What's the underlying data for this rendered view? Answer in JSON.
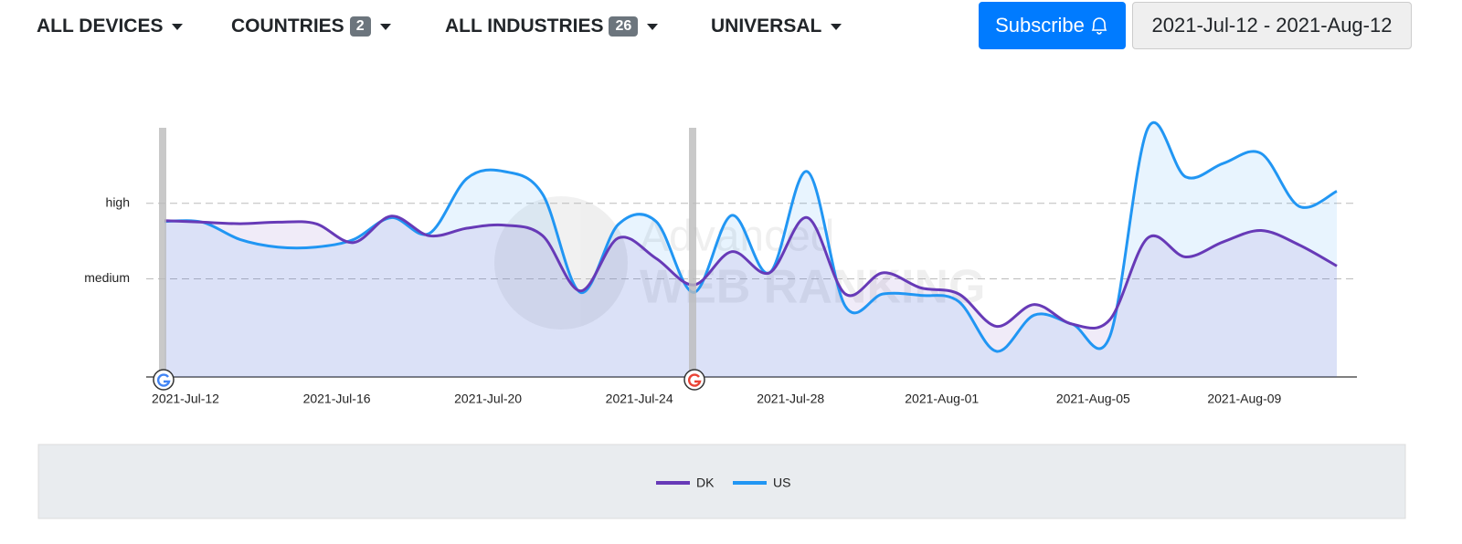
{
  "toolbar": {
    "devices": "ALL DEVICES",
    "countries": "COUNTRIES",
    "countries_badge": 2,
    "industries": "ALL INDUSTRIES",
    "industries_badge": 26,
    "search_type": "UNIVERSAL",
    "subscribe": "Subscribe",
    "date_range": "2021-Jul-12 - 2021-Aug-12"
  },
  "chart_data": {
    "type": "line",
    "watermark": [
      "Advanced",
      "WEB RANKING"
    ],
    "categories": [
      "2021-Jul-12",
      null,
      null,
      null,
      "2021-Jul-16",
      null,
      null,
      null,
      "2021-Jul-20",
      null,
      null,
      null,
      "2021-Jul-24",
      null,
      null,
      null,
      "2021-Jul-28",
      null,
      null,
      null,
      "2021-Aug-01",
      null,
      null,
      null,
      "2021-Aug-05",
      null,
      null,
      null,
      "2021-Aug-09",
      null,
      null,
      null
    ],
    "series": [
      {
        "name": "DK",
        "color": "#673ab7",
        "values": [
          2.77,
          2.75,
          2.73,
          2.75,
          2.73,
          2.48,
          2.83,
          2.57,
          2.67,
          2.71,
          2.57,
          1.84,
          2.54,
          2.27,
          1.92,
          2.36,
          2.08,
          2.81,
          1.8,
          2.08,
          1.88,
          1.8,
          1.37,
          1.66,
          1.4,
          1.46,
          2.54,
          2.29,
          2.49,
          2.64,
          2.45,
          2.17
        ]
      },
      {
        "name": "US",
        "color": "#2196f3",
        "values": [
          2.76,
          2.75,
          2.52,
          2.42,
          2.42,
          2.52,
          2.81,
          2.6,
          3.33,
          3.42,
          3.12,
          1.82,
          2.72,
          2.76,
          1.82,
          2.84,
          2.08,
          3.42,
          1.64,
          1.8,
          1.78,
          1.7,
          1.04,
          1.52,
          1.4,
          1.24,
          3.99,
          3.35,
          3.53,
          3.66,
          2.96,
          3.16
        ]
      }
    ],
    "ylim": [
      0.7,
      4.0
    ],
    "yticks": [
      {
        "value": 2,
        "label": "medium"
      },
      {
        "value": 3,
        "label": "high"
      }
    ],
    "grid": true,
    "legend": "bottom"
  }
}
